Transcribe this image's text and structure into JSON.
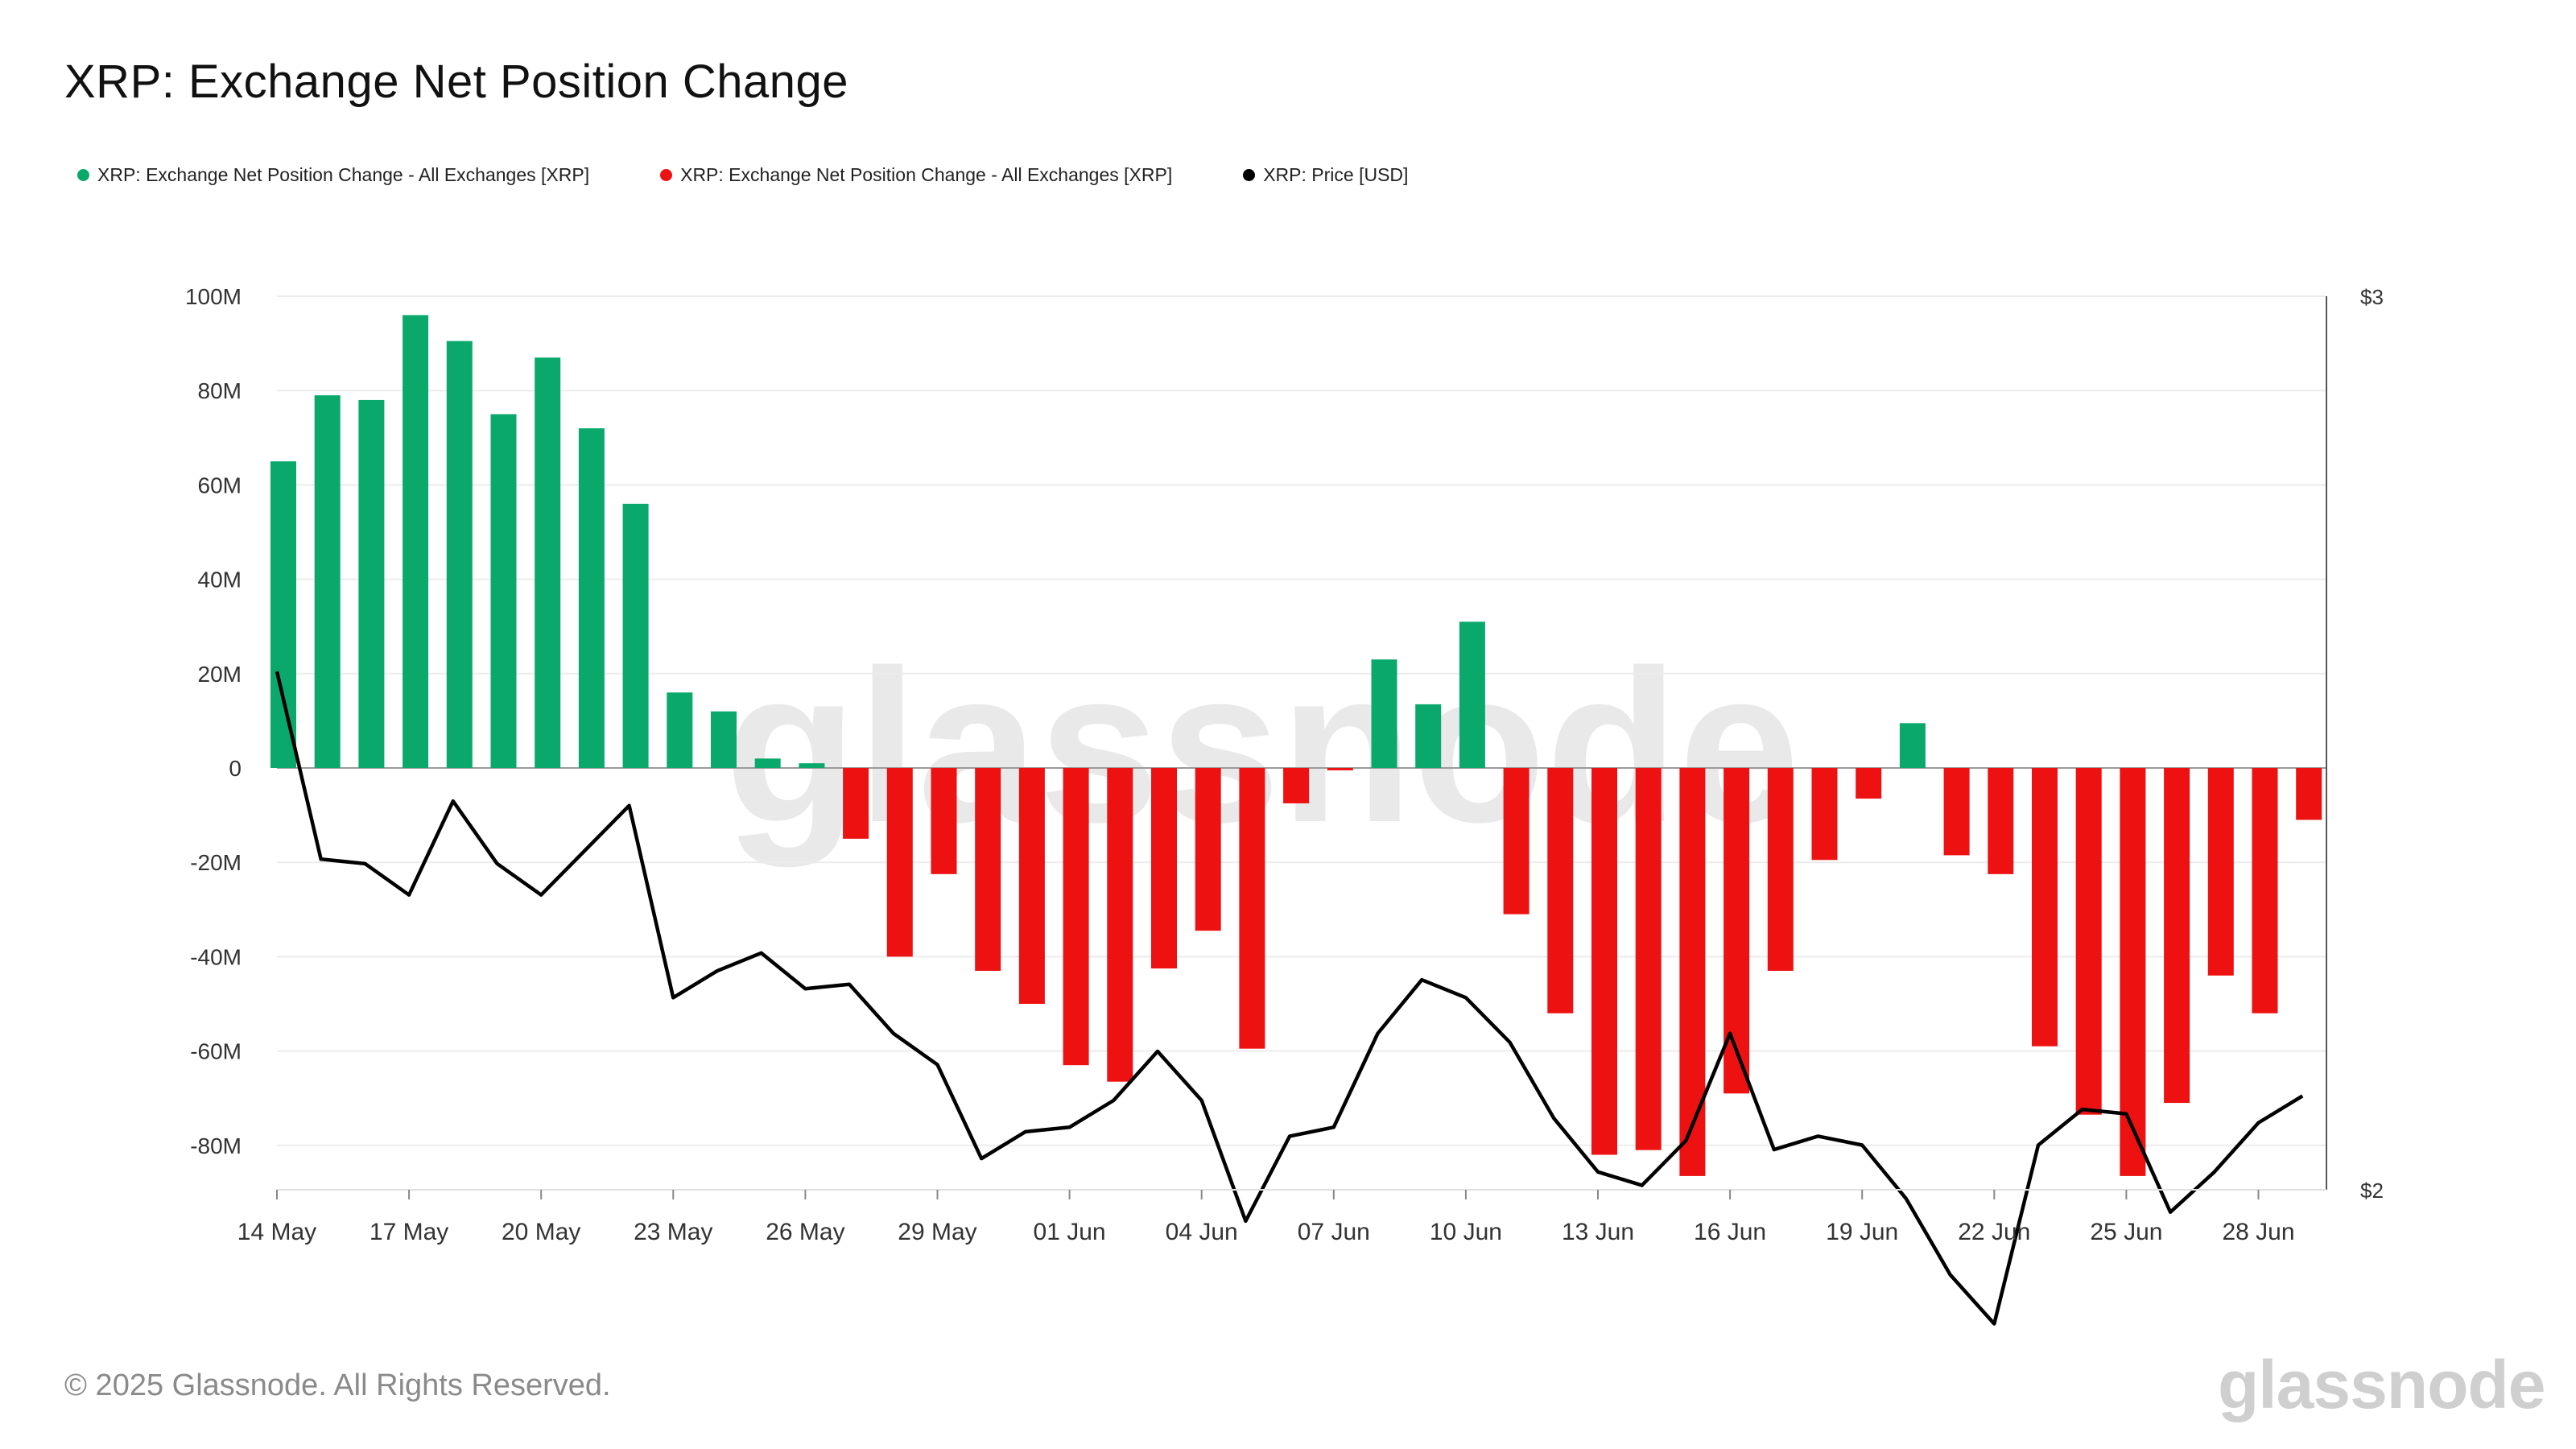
{
  "title": "XRP: Exchange Net Position Change",
  "legend": [
    {
      "label": "XRP: Exchange Net Position Change - All Exchanges [XRP]",
      "color": "#0aa86b"
    },
    {
      "label": "XRP: Exchange Net Position Change - All Exchanges [XRP]",
      "color": "#ee1111"
    },
    {
      "label": "XRP: Price [USD]",
      "color": "#000000"
    }
  ],
  "footer": "© 2025 Glassnode. All Rights Reserved.",
  "brand": "glassnode",
  "watermark": "glassnode",
  "chart_data": {
    "type": "bar",
    "title": "XRP: Exchange Net Position Change",
    "dates": [
      "14 May",
      "15 May",
      "16 May",
      "17 May",
      "18 May",
      "19 May",
      "20 May",
      "21 May",
      "22 May",
      "23 May",
      "24 May",
      "25 May",
      "26 May",
      "27 May",
      "28 May",
      "29 May",
      "30 May",
      "31 May",
      "01 Jun",
      "02 Jun",
      "03 Jun",
      "04 Jun",
      "05 Jun",
      "06 Jun",
      "07 Jun",
      "08 Jun",
      "09 Jun",
      "10 Jun",
      "11 Jun",
      "12 Jun",
      "13 Jun",
      "14 Jun",
      "15 Jun",
      "16 Jun",
      "17 Jun",
      "18 Jun",
      "19 Jun",
      "20 Jun",
      "21 Jun",
      "22 Jun",
      "23 Jun",
      "24 Jun",
      "25 Jun",
      "26 Jun",
      "27 Jun",
      "28 Jun",
      "29 Jun"
    ],
    "xticks": [
      "14 May",
      "17 May",
      "20 May",
      "23 May",
      "26 May",
      "29 May",
      "01 Jun",
      "04 Jun",
      "07 Jun",
      "10 Jun",
      "13 Jun",
      "16 Jun",
      "19 Jun",
      "22 Jun",
      "25 Jun",
      "28 Jun"
    ],
    "series": [
      {
        "name": "XRP: Exchange Net Position Change - All Exchanges [XRP]",
        "unit": "XRP (millions)",
        "positive_color": "#0aa86b",
        "negative_color": "#ee1111",
        "values": [
          65,
          79,
          78,
          96,
          90.5,
          75,
          87,
          72,
          56,
          16,
          12,
          2,
          1,
          -15,
          -40,
          -22.5,
          -43,
          -50,
          -63,
          -66.5,
          -42.5,
          -34.5,
          -59.5,
          -7.5,
          -0.5,
          23,
          13.5,
          31,
          -31,
          -52,
          -82,
          -81,
          -86.5,
          -69,
          -43,
          -19.5,
          -6.5,
          9.5,
          -18.5,
          -22.5,
          -59,
          -73.5,
          -86.5,
          -71,
          -44,
          -52,
          -11
        ]
      },
      {
        "name": "XRP: Price [USD]",
        "unit": "USD",
        "color": "#000000",
        "values": [
          2.58,
          2.37,
          2.365,
          2.33,
          2.435,
          2.365,
          2.33,
          2.38,
          2.43,
          2.215,
          2.245,
          2.265,
          2.225,
          2.23,
          2.175,
          2.14,
          2.035,
          2.065,
          2.07,
          2.1,
          2.155,
          2.1,
          1.965,
          2.06,
          2.07,
          2.175,
          2.235,
          2.215,
          2.165,
          2.08,
          2.02,
          2.005,
          2.055,
          2.175,
          2.045,
          2.06,
          2.05,
          1.99,
          1.905,
          1.85,
          2.05,
          2.09,
          2.085,
          1.975,
          2.02,
          2.075,
          2.105
        ]
      }
    ],
    "ylim": [
      -90,
      100
    ],
    "yticks": [
      "100M",
      "80M",
      "60M",
      "40M",
      "20M",
      "0",
      "-20M",
      "-40M",
      "-60M",
      "-80M"
    ],
    "ytick_values": [
      100,
      80,
      60,
      40,
      20,
      0,
      -20,
      -40,
      -60,
      -80
    ],
    "y2lim": [
      2,
      3
    ],
    "y2ticks": [
      "$3",
      "$2"
    ],
    "grid": true,
    "legend_position": "top-left"
  }
}
